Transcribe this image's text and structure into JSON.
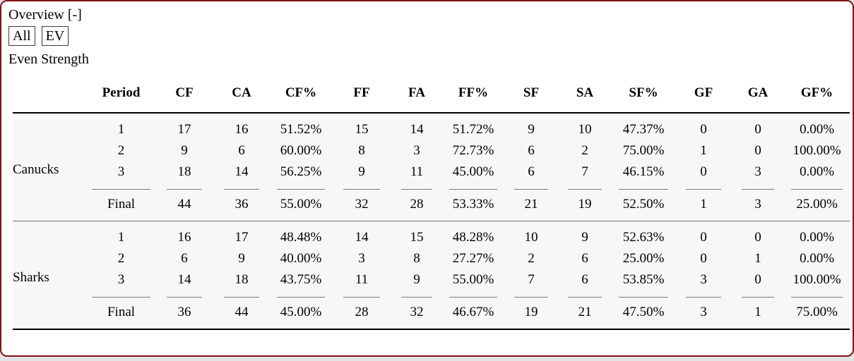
{
  "header": {
    "overview_label": "Overview",
    "collapse_toggle": "[-]"
  },
  "filters": {
    "all_label": "All",
    "ev_label": "EV"
  },
  "section_label": "Even Strength",
  "table": {
    "columns": [
      "Period",
      "CF",
      "CA",
      "CF%",
      "FF",
      "FA",
      "FF%",
      "SF",
      "SA",
      "SF%",
      "GF",
      "GA",
      "GF%"
    ],
    "final_label": "Final",
    "teams": [
      {
        "name": "Canucks",
        "rows": [
          [
            "1",
            "17",
            "16",
            "51.52%",
            "15",
            "14",
            "51.72%",
            "9",
            "10",
            "47.37%",
            "0",
            "0",
            "0.00%"
          ],
          [
            "2",
            "9",
            "6",
            "60.00%",
            "8",
            "3",
            "72.73%",
            "6",
            "2",
            "75.00%",
            "1",
            "0",
            "100.00%"
          ],
          [
            "3",
            "18",
            "14",
            "56.25%",
            "9",
            "11",
            "45.00%",
            "6",
            "7",
            "46.15%",
            "0",
            "3",
            "0.00%"
          ]
        ],
        "final": [
          "Final",
          "44",
          "36",
          "55.00%",
          "32",
          "28",
          "53.33%",
          "21",
          "19",
          "52.50%",
          "1",
          "3",
          "25.00%"
        ]
      },
      {
        "name": "Sharks",
        "rows": [
          [
            "1",
            "16",
            "17",
            "48.48%",
            "14",
            "15",
            "48.28%",
            "10",
            "9",
            "52.63%",
            "0",
            "0",
            "0.00%"
          ],
          [
            "2",
            "6",
            "9",
            "40.00%",
            "3",
            "8",
            "27.27%",
            "2",
            "6",
            "25.00%",
            "0",
            "1",
            "0.00%"
          ],
          [
            "3",
            "14",
            "18",
            "43.75%",
            "11",
            "9",
            "55.00%",
            "7",
            "6",
            "53.85%",
            "3",
            "0",
            "100.00%"
          ]
        ],
        "final": [
          "Final",
          "36",
          "44",
          "45.00%",
          "28",
          "32",
          "46.67%",
          "19",
          "21",
          "47.50%",
          "3",
          "1",
          "75.00%"
        ]
      }
    ]
  },
  "colors": {
    "panel_border": "#7f1416",
    "page_background": "#e3e3e3",
    "table_body_background": "#f7f7f7",
    "rule_dark": "#000000",
    "rule_mid": "#6b6b6b"
  }
}
